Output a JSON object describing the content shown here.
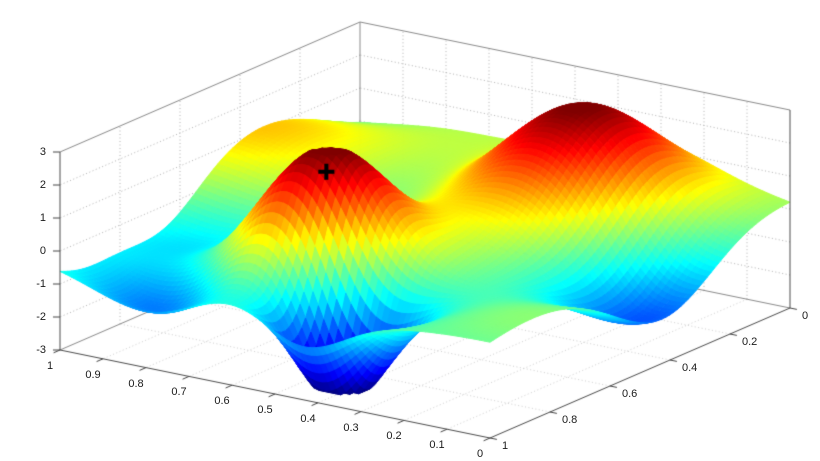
{
  "figure": {
    "background": "#ffffff"
  },
  "chart_data": {
    "type": "surface",
    "title": "",
    "colormap": "jet",
    "grid": "dotted",
    "x_axis": {
      "range": [
        0,
        1
      ],
      "tick_labels": [
        "1",
        "0.9",
        "0.8",
        "0.7",
        "0.6",
        "0.5",
        "0.4",
        "0.3",
        "0.2",
        "0.1",
        "0"
      ],
      "tick_values": [
        1,
        0.9,
        0.8,
        0.7,
        0.6,
        0.5,
        0.4,
        0.3,
        0.2,
        0.1,
        0
      ]
    },
    "y_axis": {
      "range": [
        0,
        1
      ],
      "tick_labels": [
        "0",
        "0.2",
        "0.4",
        "0.6",
        "0.8",
        "1"
      ],
      "tick_values": [
        0,
        0.2,
        0.4,
        0.6,
        0.8,
        1
      ]
    },
    "z_axis": {
      "range": [
        -3,
        3
      ],
      "tick_labels": [
        "3",
        "2",
        "1",
        "0",
        "-1",
        "-2",
        "-3"
      ],
      "tick_values": [
        3,
        2,
        1,
        0,
        -1,
        -2,
        -3
      ]
    },
    "marker": {
      "symbol": "+",
      "color": "#000000",
      "x": 0.555,
      "y": 0.75,
      "z": 2.6
    },
    "surface_model": {
      "base": -0.2,
      "clamp": [
        -3.05,
        3.0
      ],
      "bumps": [
        {
          "amp": 3.9,
          "cx": 0.555,
          "cy": 0.75,
          "sx": 0.17,
          "sy": 0.18
        },
        {
          "amp": 3.2,
          "cx": 0.33,
          "cy": 0.2,
          "sx": 0.22,
          "sy": 0.25
        },
        {
          "amp": -4.6,
          "cx": 0.45,
          "cy": 0.87,
          "sx": 0.14,
          "sy": 0.12
        },
        {
          "amp": -1.6,
          "cx": 0.78,
          "cy": 0.93,
          "sx": 0.19,
          "sy": 0.14
        },
        {
          "amp": -1.6,
          "cx": 0.07,
          "cy": 0.42,
          "sx": 0.16,
          "sy": 0.22
        },
        {
          "amp": 1.1,
          "cx": 0.95,
          "cy": 0.3,
          "sx": 0.27,
          "sy": 0.3
        },
        {
          "amp": -0.9,
          "cx": 0.9,
          "cy": 0.65,
          "sx": 0.18,
          "sy": 0.16
        }
      ],
      "ripple": {
        "amp": 0.3,
        "fx": 9,
        "fy": 7,
        "px": 1.5,
        "py": 0.5
      }
    },
    "colors": {
      "grid": "#b2b2b2",
      "floor_grid": "#cfcfcf",
      "back_edge": "#8a8a8a",
      "front_edge": "#4a4a4a",
      "label": "#1a1a1a"
    }
  }
}
